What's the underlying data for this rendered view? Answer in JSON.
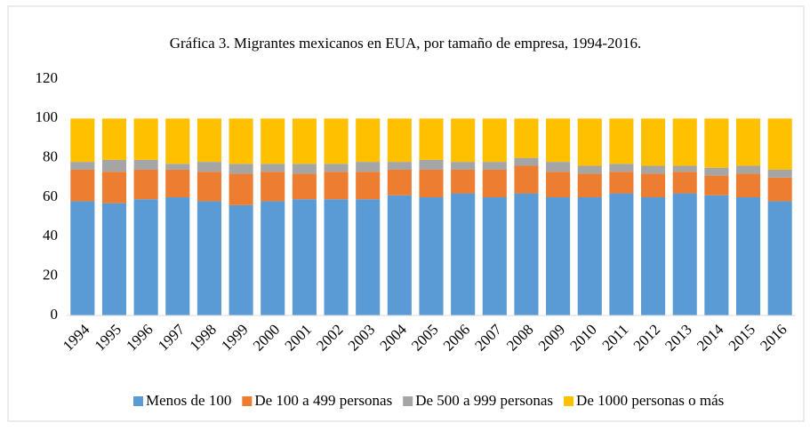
{
  "chart_data": {
    "type": "stacked_bar",
    "title": "Gráfica 3. Migrantes mexicanos en EUA, por tamaño de empresa, 1994-2016.",
    "categories": [
      "1994",
      "1995",
      "1996",
      "1997",
      "1998",
      "1999",
      "2000",
      "2001",
      "2002",
      "2003",
      "2004",
      "2005",
      "2006",
      "2007",
      "2008",
      "2009",
      "2010",
      "2011",
      "2012",
      "2013",
      "2014",
      "2015",
      "2016"
    ],
    "series": [
      {
        "name": "Menos de 100",
        "color": "#5b9bd5",
        "values": [
          58,
          57,
          59,
          60,
          58,
          56,
          58,
          59,
          59,
          59,
          61,
          60,
          62,
          60,
          62,
          60,
          60,
          62,
          60,
          62,
          61,
          60,
          58
        ]
      },
      {
        "name": "De 100 a 499 personas",
        "color": "#ed7d31",
        "values": [
          16,
          16,
          15,
          14,
          15,
          16,
          15,
          13,
          14,
          14,
          13,
          14,
          12,
          14,
          14,
          13,
          12,
          11,
          12,
          11,
          10,
          12,
          12
        ]
      },
      {
        "name": "De 500 a 999 personas",
        "color": "#a5a5a5",
        "values": [
          4,
          6,
          5,
          3,
          5,
          5,
          4,
          5,
          4,
          5,
          4,
          5,
          4,
          4,
          4,
          5,
          4,
          4,
          4,
          3,
          4,
          4,
          4
        ]
      },
      {
        "name": "De 1000 personas o más",
        "color": "#ffc000",
        "values": [
          22,
          21,
          21,
          23,
          22,
          23,
          23,
          23,
          23,
          22,
          22,
          21,
          22,
          22,
          20,
          22,
          24,
          23,
          24,
          24,
          25,
          24,
          26
        ]
      }
    ],
    "ylim": [
      0,
      120
    ],
    "yticks": [
      0,
      20,
      40,
      60,
      80,
      100,
      120
    ],
    "grid": false,
    "legend": "bottom"
  }
}
